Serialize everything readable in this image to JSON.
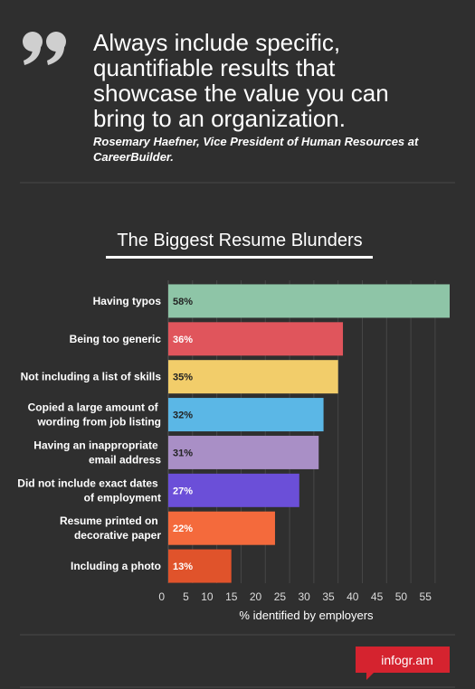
{
  "quote": {
    "text": "Always include specific, quantifiable results that showcase the value you can bring to an organization.",
    "attribution": "Rosemary Haefner, Vice President of Human Resources at CareerBuilder."
  },
  "chart_data": {
    "type": "hbar",
    "title": "The Biggest Resume Blunders",
    "categories": [
      "Having typos",
      "Being too generic",
      "Not including a list of skills",
      "Copied a large amount of wording from job listing",
      "Having an inappropriate email address",
      "Did not include exact dates of employment",
      "Resume printed on decorative paper",
      "Including a photo"
    ],
    "values": [
      58,
      36,
      35,
      32,
      31,
      27,
      22,
      13
    ],
    "value_labels": [
      "58%",
      "36%",
      "35%",
      "32%",
      "31%",
      "27%",
      "22%",
      "13%"
    ],
    "colors": [
      "#8ec5a7",
      "#e0555c",
      "#f2cd6a",
      "#5bb7e6",
      "#a98fc6",
      "#6b4fd8",
      "#f46a3c",
      "#e0532b"
    ],
    "xlim": [
      0,
      58
    ],
    "xticks": [
      0,
      5,
      10,
      15,
      20,
      25,
      30,
      35,
      40,
      45,
      50,
      55
    ],
    "xlabel": "% identified by employers",
    "grid": true
  },
  "footer": {
    "brand": "infogr.am"
  }
}
